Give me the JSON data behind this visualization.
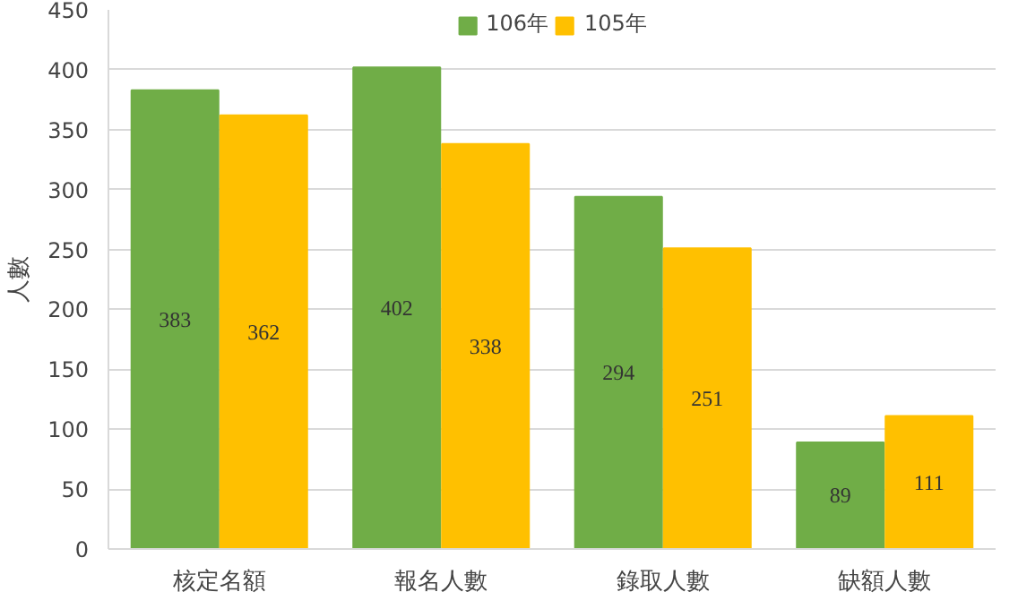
{
  "chart_data": {
    "type": "bar",
    "ylabel": "人數",
    "categories": [
      "核定名額",
      "報名人數",
      "錄取人數",
      "缺額人數"
    ],
    "series": [
      {
        "name": "106年",
        "color": "#70ad47",
        "values": [
          383,
          402,
          294,
          89
        ]
      },
      {
        "name": "105年",
        "color": "#ffc000",
        "values": [
          362,
          338,
          251,
          111
        ]
      }
    ],
    "ylim": [
      0,
      450
    ],
    "yticks": [
      0,
      50,
      100,
      150,
      200,
      250,
      300,
      350,
      400,
      450
    ],
    "grid": "y",
    "legend": "top",
    "data_labels": true
  }
}
